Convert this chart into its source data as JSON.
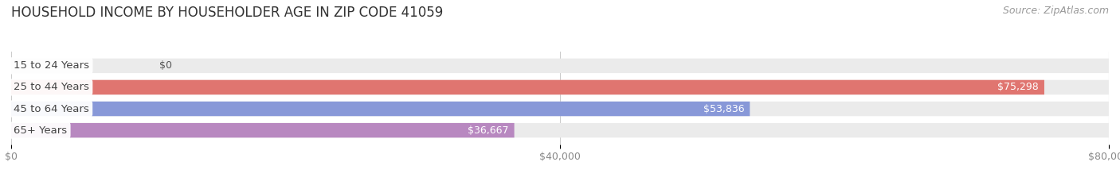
{
  "title": "HOUSEHOLD INCOME BY HOUSEHOLDER AGE IN ZIP CODE 41059",
  "source": "Source: ZipAtlas.com",
  "categories": [
    "15 to 24 Years",
    "25 to 44 Years",
    "45 to 64 Years",
    "65+ Years"
  ],
  "values": [
    0,
    75298,
    53836,
    36667
  ],
  "bar_colors": [
    "#ddb97a",
    "#e07570",
    "#8898d8",
    "#b888c0"
  ],
  "bar_bg_color": "#ebebeb",
  "xlim": [
    0,
    80000
  ],
  "xticks": [
    0,
    40000,
    80000
  ],
  "xtick_labels": [
    "$0",
    "$40,000",
    "$80,000"
  ],
  "title_fontsize": 12,
  "source_fontsize": 9,
  "tick_fontsize": 9,
  "label_fontsize": 9.5,
  "value_fontsize": 9,
  "background_color": "#ffffff",
  "bar_height": 0.68,
  "figsize": [
    14.06,
    2.33
  ],
  "dpi": 100
}
